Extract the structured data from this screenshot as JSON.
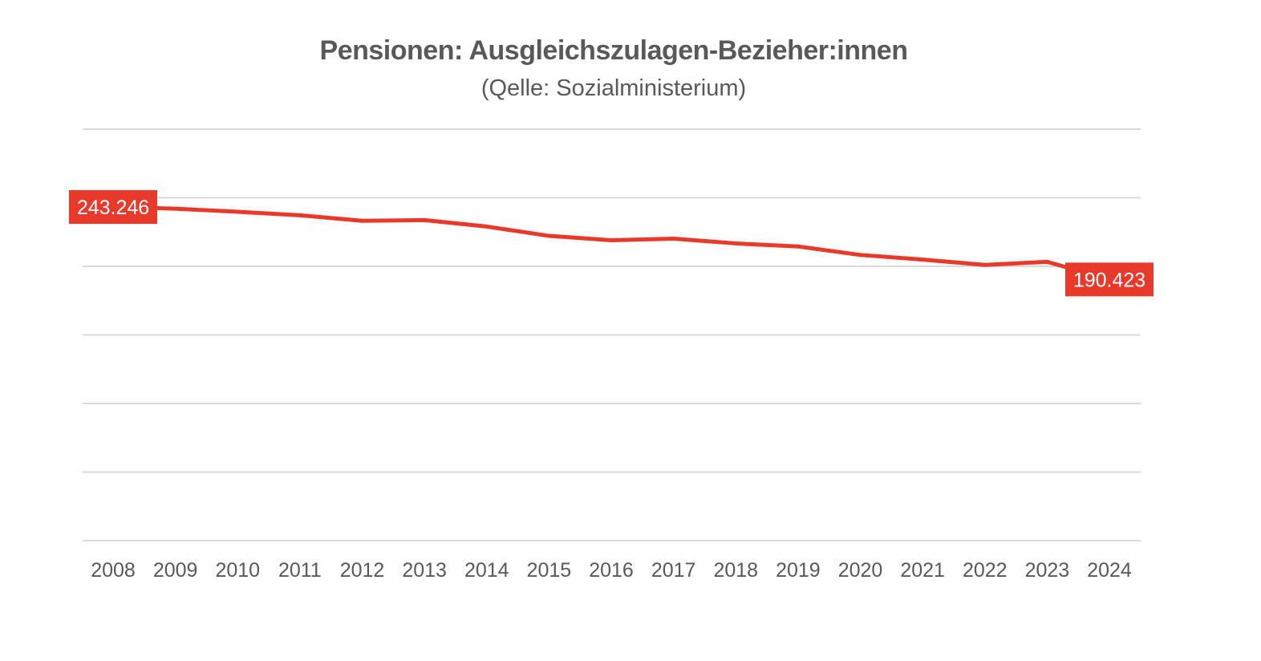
{
  "chart_data": {
    "type": "line",
    "title": "Pensionen: Ausgleichszulagen-Bezieher:innen",
    "subtitle": "(Qelle: Sozialministerium)",
    "xlabel": "",
    "ylabel": "",
    "x": [
      "2008",
      "2009",
      "2010",
      "2011",
      "2012",
      "2013",
      "2014",
      "2015",
      "2016",
      "2017",
      "2018",
      "2019",
      "2020",
      "2021",
      "2022",
      "2023",
      "2024"
    ],
    "series": [
      {
        "values": [
          243246,
          242000,
          239800,
          237200,
          233200,
          233700,
          229000,
          222200,
          219000,
          220200,
          216700,
          214500,
          208300,
          204900,
          201000,
          203300,
          190423
        ]
      }
    ],
    "data_labels": [
      {
        "index": 0,
        "text": "243.246"
      },
      {
        "index": 16,
        "text": "190.423"
      }
    ],
    "ylim": [
      0,
      300000
    ],
    "grid": true,
    "y_tick_labels_shown": false,
    "legend": "none",
    "colors": {
      "line": "#e8392b",
      "label_bg": "#e8392b",
      "label_text": "#ffffff",
      "grid": "#d9d9d9",
      "text": "#595959"
    }
  }
}
